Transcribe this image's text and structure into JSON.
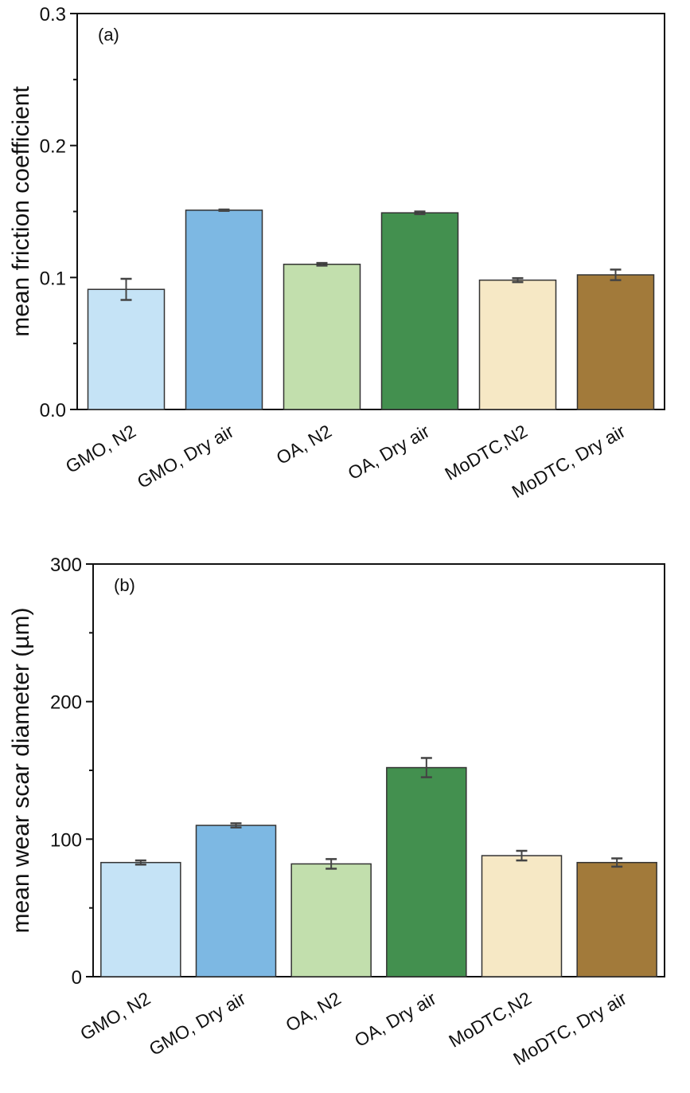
{
  "chart_data": [
    {
      "type": "bar",
      "panel_label": "(a)",
      "ylabel": "mean friction coefficient",
      "xlabel": "",
      "ylim": [
        0,
        0.3
      ],
      "yticks": [
        "0.0",
        "0.1",
        "0.2",
        "0.3"
      ],
      "ytick_values": [
        0,
        0.1,
        0.2,
        0.3
      ],
      "grid": false,
      "categories": [
        "GMO, N2",
        "GMO, Dry air",
        "OA, N2",
        "OA, Dry air",
        "MoDTC,N2",
        "MoDTC, Dry air"
      ],
      "values": [
        0.091,
        0.151,
        0.11,
        0.149,
        0.098,
        0.102
      ],
      "errors": [
        0.008,
        0.0005,
        0.001,
        0.001,
        0.0015,
        0.004
      ],
      "colors": [
        "#c5e3f6",
        "#7db8e3",
        "#c2dfad",
        "#43904f",
        "#f6e8c5",
        "#a27a3a"
      ]
    },
    {
      "type": "bar",
      "panel_label": "(b)",
      "ylabel": "mean wear scar diameter (µm)",
      "xlabel": "",
      "ylim": [
        0,
        300
      ],
      "yticks": [
        "0",
        "100",
        "200",
        "300"
      ],
      "ytick_values": [
        0,
        100,
        200,
        300
      ],
      "grid": false,
      "categories": [
        "GMO, N2",
        "GMO, Dry air",
        "OA, N2",
        "OA, Dry air",
        "MoDTC,N2",
        "MoDTC, Dry air"
      ],
      "values": [
        83,
        110,
        82,
        152,
        88,
        83
      ],
      "errors": [
        1.5,
        1.5,
        3.5,
        7,
        3.5,
        3
      ],
      "colors": [
        "#c5e3f6",
        "#7db8e3",
        "#c2dfad",
        "#43904f",
        "#f6e8c5",
        "#a27a3a"
      ]
    }
  ]
}
